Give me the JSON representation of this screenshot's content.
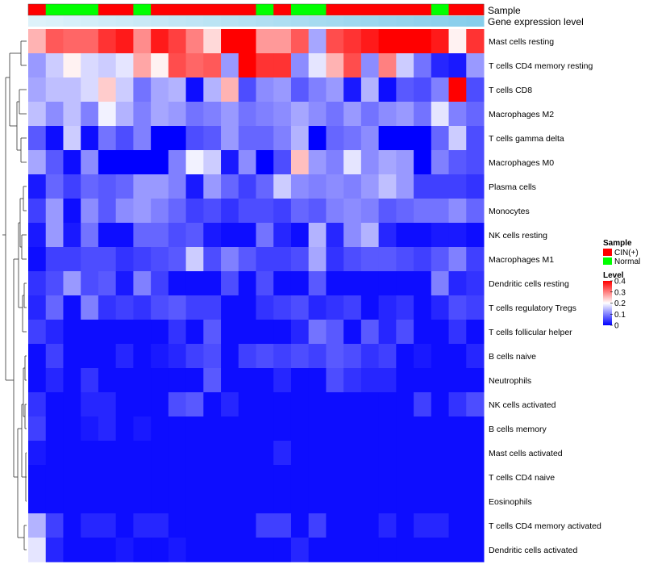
{
  "chart_data": {
    "type": "heatmap",
    "title": "",
    "annotation_labels": {
      "sample": "Sample",
      "expression": "Gene expression level"
    },
    "sample_groups": [
      "C",
      "N",
      "N",
      "N",
      "C",
      "C",
      "N",
      "C",
      "C",
      "C",
      "C",
      "C",
      "C",
      "N",
      "C",
      "N",
      "N",
      "C",
      "C",
      "C",
      "C",
      "C",
      "C",
      "N",
      "C",
      "C"
    ],
    "rows": [
      "Mast cells resting",
      "T cells CD4 memory resting",
      "T cells CD8",
      "Macrophages M2",
      "T cells gamma delta",
      "Macrophages M0",
      "Plasma cells",
      "Monocytes",
      "NK cells resting",
      "Macrophages M1",
      "Dendritic cells resting",
      "T cells regulatory  Tregs",
      "T cells follicular helper",
      "B cells naive",
      "Neutrophils",
      "NK cells activated",
      "B cells memory",
      "Mast cells activated",
      "T cells CD4 naive",
      "Eosinophils",
      "T cells CD4 memory activated",
      "Dendritic cells activated"
    ],
    "values": [
      [
        0.26,
        0.33,
        0.32,
        0.32,
        0.36,
        0.38,
        0.29,
        0.38,
        0.35,
        0.3,
        0.23,
        0.4,
        0.4,
        0.28,
        0.28,
        0.33,
        0.13,
        0.34,
        0.36,
        0.38,
        0.4,
        0.4,
        0.4,
        0.38,
        0.21,
        0.36
      ],
      [
        0.12,
        0.16,
        0.21,
        0.17,
        0.16,
        0.18,
        0.27,
        0.21,
        0.34,
        0.32,
        0.33,
        0.12,
        0.4,
        0.36,
        0.36,
        0.11,
        0.18,
        0.26,
        0.34,
        0.11,
        0.3,
        0.16,
        0.09,
        0.03,
        0.02,
        0.12
      ],
      [
        0.13,
        0.15,
        0.15,
        0.17,
        0.24,
        0.16,
        0.09,
        0.13,
        0.14,
        0.01,
        0.14,
        0.26,
        0.06,
        0.11,
        0.12,
        0.07,
        0.1,
        0.12,
        0.02,
        0.14,
        0.01,
        0.07,
        0.06,
        0.1,
        0.4,
        0.06
      ],
      [
        0.15,
        0.11,
        0.15,
        0.1,
        0.19,
        0.14,
        0.1,
        0.13,
        0.12,
        0.09,
        0.1,
        0.12,
        0.09,
        0.1,
        0.11,
        0.13,
        0.11,
        0.09,
        0.12,
        0.09,
        0.11,
        0.12,
        0.09,
        0.18,
        0.1,
        0.08
      ],
      [
        0.07,
        0.01,
        0.16,
        0.01,
        0.09,
        0.06,
        0.1,
        0.0,
        0.0,
        0.06,
        0.07,
        0.12,
        0.08,
        0.08,
        0.1,
        0.14,
        0.0,
        0.08,
        0.09,
        0.11,
        0.0,
        0.0,
        0.0,
        0.08,
        0.16,
        0.06
      ],
      [
        0.13,
        0.07,
        0.01,
        0.11,
        0.0,
        0.0,
        0.0,
        0.0,
        0.1,
        0.19,
        0.16,
        0.02,
        0.11,
        0.0,
        0.06,
        0.25,
        0.12,
        0.1,
        0.18,
        0.11,
        0.13,
        0.12,
        0.0,
        0.1,
        0.07,
        0.06
      ],
      [
        0.02,
        0.08,
        0.05,
        0.08,
        0.07,
        0.08,
        0.12,
        0.12,
        0.1,
        0.02,
        0.12,
        0.08,
        0.05,
        0.08,
        0.16,
        0.11,
        0.1,
        0.11,
        0.1,
        0.12,
        0.15,
        0.12,
        0.05,
        0.05,
        0.05,
        0.04
      ],
      [
        0.05,
        0.12,
        0.01,
        0.11,
        0.07,
        0.11,
        0.12,
        0.1,
        0.08,
        0.05,
        0.06,
        0.04,
        0.06,
        0.06,
        0.05,
        0.08,
        0.07,
        0.1,
        0.11,
        0.1,
        0.07,
        0.08,
        0.09,
        0.09,
        0.11,
        0.08
      ],
      [
        0.02,
        0.12,
        0.02,
        0.09,
        0.01,
        0.01,
        0.08,
        0.08,
        0.06,
        0.07,
        0.02,
        0.01,
        0.01,
        0.09,
        0.03,
        0.01,
        0.14,
        0.03,
        0.11,
        0.14,
        0.03,
        0.01,
        0.01,
        0.02,
        0.02,
        0.01
      ],
      [
        0.01,
        0.05,
        0.05,
        0.06,
        0.06,
        0.04,
        0.05,
        0.06,
        0.07,
        0.16,
        0.06,
        0.1,
        0.07,
        0.05,
        0.05,
        0.06,
        0.13,
        0.04,
        0.06,
        0.07,
        0.07,
        0.06,
        0.05,
        0.07,
        0.1,
        0.05
      ],
      [
        0.04,
        0.06,
        0.12,
        0.06,
        0.07,
        0.02,
        0.1,
        0.05,
        0.01,
        0.01,
        0.01,
        0.06,
        0.01,
        0.06,
        0.01,
        0.01,
        0.07,
        0.01,
        0.01,
        0.01,
        0.01,
        0.01,
        0.01,
        0.1,
        0.03,
        0.04
      ],
      [
        0.03,
        0.08,
        0.01,
        0.1,
        0.04,
        0.05,
        0.04,
        0.06,
        0.07,
        0.05,
        0.05,
        0.01,
        0.01,
        0.04,
        0.05,
        0.06,
        0.03,
        0.04,
        0.05,
        0.01,
        0.03,
        0.04,
        0.01,
        0.03,
        0.06,
        0.05
      ],
      [
        0.05,
        0.03,
        0.01,
        0.01,
        0.01,
        0.01,
        0.01,
        0.01,
        0.04,
        0.01,
        0.07,
        0.01,
        0.01,
        0.01,
        0.01,
        0.03,
        0.09,
        0.07,
        0.01,
        0.07,
        0.03,
        0.06,
        0.01,
        0.01,
        0.04,
        0.01
      ],
      [
        0.01,
        0.05,
        0.01,
        0.01,
        0.01,
        0.03,
        0.01,
        0.02,
        0.03,
        0.05,
        0.06,
        0.01,
        0.05,
        0.06,
        0.05,
        0.06,
        0.05,
        0.07,
        0.06,
        0.04,
        0.05,
        0.01,
        0.02,
        0.01,
        0.01,
        0.03
      ],
      [
        0.01,
        0.03,
        0.01,
        0.04,
        0.01,
        0.01,
        0.01,
        0.01,
        0.01,
        0.01,
        0.07,
        0.01,
        0.01,
        0.01,
        0.03,
        0.01,
        0.01,
        0.06,
        0.04,
        0.03,
        0.03,
        0.01,
        0.01,
        0.01,
        0.01,
        0.01
      ],
      [
        0.04,
        0.01,
        0.01,
        0.03,
        0.03,
        0.01,
        0.01,
        0.01,
        0.06,
        0.07,
        0.01,
        0.03,
        0.01,
        0.01,
        0.01,
        0.01,
        0.01,
        0.01,
        0.01,
        0.01,
        0.01,
        0.01,
        0.05,
        0.01,
        0.04,
        0.06
      ],
      [
        0.05,
        0.01,
        0.01,
        0.02,
        0.03,
        0.01,
        0.02,
        0.01,
        0.01,
        0.01,
        0.01,
        0.01,
        0.01,
        0.01,
        0.01,
        0.01,
        0.01,
        0.01,
        0.01,
        0.01,
        0.01,
        0.01,
        0.01,
        0.01,
        0.01,
        0.01
      ],
      [
        0.02,
        0.01,
        0.01,
        0.01,
        0.01,
        0.01,
        0.01,
        0.01,
        0.01,
        0.01,
        0.01,
        0.01,
        0.01,
        0.01,
        0.03,
        0.01,
        0.01,
        0.01,
        0.01,
        0.01,
        0.01,
        0.01,
        0.01,
        0.01,
        0.01,
        0.01
      ],
      [
        0.01,
        0.01,
        0.01,
        0.01,
        0.01,
        0.01,
        0.01,
        0.01,
        0.01,
        0.01,
        0.01,
        0.01,
        0.01,
        0.01,
        0.01,
        0.01,
        0.01,
        0.01,
        0.01,
        0.01,
        0.01,
        0.01,
        0.01,
        0.01,
        0.01,
        0.01
      ],
      [
        0.01,
        0.01,
        0.01,
        0.01,
        0.01,
        0.01,
        0.01,
        0.01,
        0.01,
        0.01,
        0.01,
        0.01,
        0.01,
        0.01,
        0.01,
        0.01,
        0.01,
        0.01,
        0.01,
        0.01,
        0.01,
        0.01,
        0.01,
        0.01,
        0.01,
        0.01
      ],
      [
        0.14,
        0.05,
        0.01,
        0.03,
        0.03,
        0.01,
        0.03,
        0.03,
        0.01,
        0.01,
        0.01,
        0.01,
        0.01,
        0.05,
        0.05,
        0.01,
        0.05,
        0.01,
        0.01,
        0.01,
        0.03,
        0.01,
        0.03,
        0.03,
        0.01,
        0.01
      ],
      [
        0.18,
        0.03,
        0.01,
        0.01,
        0.01,
        0.02,
        0.01,
        0.01,
        0.02,
        0.01,
        0.01,
        0.01,
        0.01,
        0.01,
        0.01,
        0.03,
        0.01,
        0.01,
        0.01,
        0.01,
        0.01,
        0.01,
        0.01,
        0.01,
        0.01,
        0.01
      ]
    ],
    "legend": {
      "sample": {
        "title": "Sample",
        "entries": [
          {
            "label": "CIN(+)",
            "color": "#ff0000"
          },
          {
            "label": "Normal",
            "color": "#00ff00"
          }
        ]
      },
      "level": {
        "title": "Level",
        "min": 0,
        "max": 0.4,
        "ticks": [
          "0",
          "0.1",
          "0.2",
          "0.3",
          "0.4"
        ],
        "colors": {
          "low": "#0000ff",
          "mid": "#ffffff",
          "high": "#ff0000"
        }
      }
    },
    "expression_bar_color": "#87ceeb",
    "group_colors": {
      "C": "#ff0000",
      "N": "#00ff00"
    }
  }
}
